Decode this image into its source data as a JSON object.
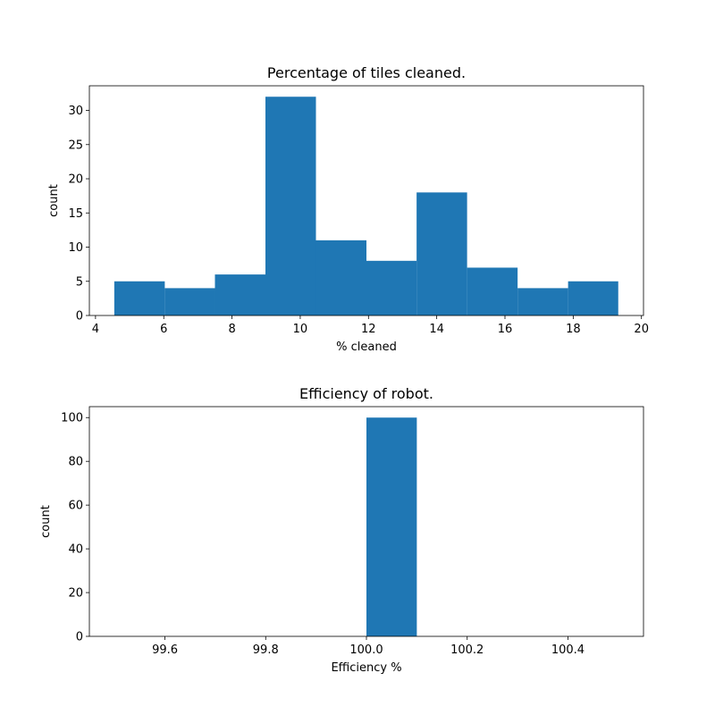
{
  "bar_color": "#1f77b4",
  "chart_data": [
    {
      "type": "bar",
      "title": "Percentage of tiles cleaned.",
      "xlabel": "% cleaned",
      "ylabel": "count",
      "bins": [
        {
          "x0": 4.55,
          "x1": 6.03,
          "count": 5
        },
        {
          "x0": 6.03,
          "x1": 7.5,
          "count": 4
        },
        {
          "x0": 7.5,
          "x1": 8.98,
          "count": 6
        },
        {
          "x0": 8.98,
          "x1": 10.46,
          "count": 32
        },
        {
          "x0": 10.46,
          "x1": 11.94,
          "count": 11
        },
        {
          "x0": 11.94,
          "x1": 13.41,
          "count": 8
        },
        {
          "x0": 13.41,
          "x1": 14.89,
          "count": 18
        },
        {
          "x0": 14.89,
          "x1": 16.37,
          "count": 7
        },
        {
          "x0": 16.37,
          "x1": 17.85,
          "count": 4
        },
        {
          "x0": 17.85,
          "x1": 19.32,
          "count": 5
        }
      ],
      "xlim": [
        3.82,
        20.06
      ],
      "ylim": [
        0,
        33.6
      ],
      "xticks": [
        4,
        6,
        8,
        10,
        12,
        14,
        16,
        18,
        20
      ],
      "yticks": [
        0,
        5,
        10,
        15,
        20,
        25,
        30
      ],
      "grid": false
    },
    {
      "type": "bar",
      "title": "Efficiency of robot.",
      "xlabel": "Efficiency %",
      "ylabel": "count",
      "bins": [
        {
          "x0": 100.0,
          "x1": 100.1,
          "count": 100
        }
      ],
      "xlim": [
        99.45,
        100.55
      ],
      "ylim": [
        0,
        105
      ],
      "xticks": [
        99.6,
        99.8,
        100.0,
        100.2,
        100.4
      ],
      "xtick_labels": [
        "99.6",
        "99.8",
        "100.0",
        "100.2",
        "100.4"
      ],
      "yticks": [
        0,
        20,
        40,
        60,
        80,
        100
      ],
      "grid": false
    }
  ]
}
